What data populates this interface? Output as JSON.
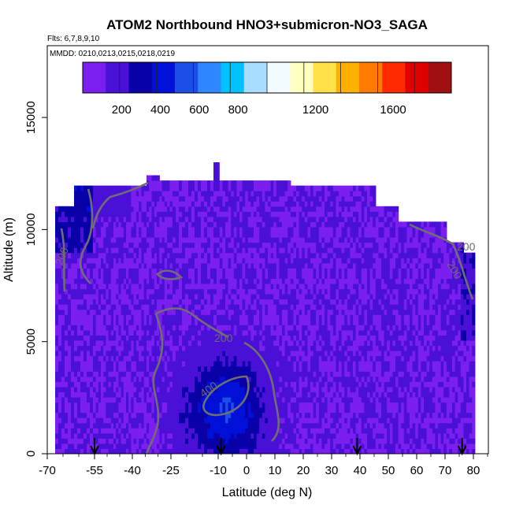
{
  "chart_data": {
    "type": "heatmap",
    "title": "ATOM2 Northbound HNO3+submicron-NO3_SAGA",
    "flights_label": "Flts: 6,7,8,9,10",
    "mmdd_label": "MMDD: 0210,0213,0215,0218,0219",
    "xlabel": "Latitude (deg N)",
    "ylabel": "Altitude (m)",
    "x_ticks": [
      "-70",
      "-55",
      "-40",
      "-25",
      "-10",
      "0",
      "10",
      "20",
      "30",
      "40",
      "50",
      "60",
      "70",
      "80"
    ],
    "x_tick_values": [
      -70,
      -55,
      -40,
      -25,
      -10,
      0,
      10,
      20,
      30,
      40,
      50,
      60,
      70,
      80
    ],
    "y_ticks": [
      "0",
      "5000",
      "10000",
      "15000"
    ],
    "y_tick_values": [
      0,
      5000,
      10000,
      15000
    ],
    "colorbar": {
      "tick_labels": [
        "200",
        "400",
        "600",
        "800",
        "1200",
        "1600"
      ],
      "tick_values": [
        200,
        400,
        600,
        800,
        1200,
        1600
      ],
      "range": [
        0,
        1900
      ],
      "colors": [
        "#7b1ff0",
        "#4b10d8",
        "#0a00a8",
        "#0010d8",
        "#1d4fe8",
        "#2f86ff",
        "#00c2ff",
        "#a8ddff",
        "#f2fbff",
        "#ffffc0",
        "#ffe14a",
        "#ffb000",
        "#ff7a00",
        "#ff2a00",
        "#e00000",
        "#a11010"
      ]
    },
    "contour_labels": [
      "200",
      "400",
      "200",
      "200",
      "200"
    ],
    "profile_arrow_latitudes": [
      -55,
      -9,
      39,
      76
    ],
    "field_notes": {
      "background_value": 120,
      "low_latitude_enhancement": {
        "lat_range": [
          -22,
          8
        ],
        "alt_range": [
          0,
          5500
        ],
        "peak_value": 470,
        "peak_altitude": 2000
      }
    }
  }
}
